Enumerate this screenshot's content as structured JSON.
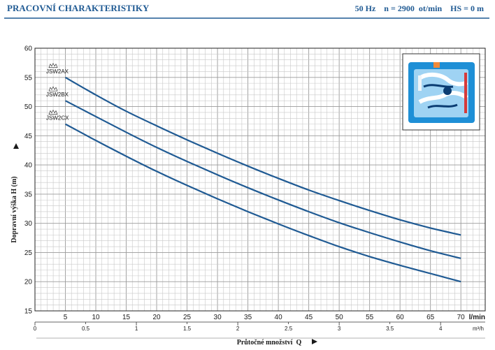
{
  "header": {
    "title": "PRACOVNÍ CHARAKTERISTIKY",
    "conditions": "50 Hz    n = 2900  ot/min    HS = 0 m"
  },
  "chart_data": {
    "type": "line",
    "xlabel": "Průtočné množství  Q",
    "ylabel": "Dopravní výška H (m)",
    "x_unit": "l/min",
    "x2_unit": "m³/h",
    "xlim": [
      0,
      74
    ],
    "ylim": [
      15,
      60
    ],
    "x_ticks": [
      5,
      10,
      15,
      20,
      25,
      30,
      35,
      40,
      45,
      50,
      55,
      60,
      65,
      70
    ],
    "x2_ticks": [
      "0",
      "0.5",
      "1",
      "1.5",
      "2",
      "2.5",
      "3",
      "3.5",
      "4"
    ],
    "y_ticks": [
      15,
      20,
      25,
      30,
      35,
      40,
      45,
      50,
      55,
      60
    ],
    "grid": true,
    "series": [
      {
        "name": "JSW2AX",
        "color": "#1f5a93",
        "x": [
          5,
          10,
          15,
          20,
          25,
          30,
          35,
          40,
          45,
          50,
          55,
          60,
          65,
          70
        ],
        "y": [
          55,
          52,
          49.2,
          46.7,
          44.3,
          42,
          39.8,
          37.7,
          35.7,
          33.9,
          32.2,
          30.6,
          29.2,
          28
        ]
      },
      {
        "name": "JSW2BX",
        "color": "#1f5a93",
        "x": [
          5,
          10,
          15,
          20,
          25,
          30,
          35,
          40,
          45,
          50,
          55,
          60,
          65,
          70
        ],
        "y": [
          51,
          48.3,
          45.6,
          43,
          40.6,
          38.3,
          36.1,
          34,
          32,
          30.1,
          28.4,
          26.8,
          25.3,
          24
        ]
      },
      {
        "name": "JSW2CX",
        "color": "#1f5a93",
        "x": [
          5,
          10,
          15,
          20,
          25,
          30,
          35,
          40,
          45,
          50,
          55,
          60,
          65,
          70
        ],
        "y": [
          47,
          44.2,
          41.5,
          38.9,
          36.5,
          34.2,
          32,
          29.9,
          27.9,
          26,
          24.3,
          22.8,
          21.4,
          20
        ]
      }
    ]
  }
}
